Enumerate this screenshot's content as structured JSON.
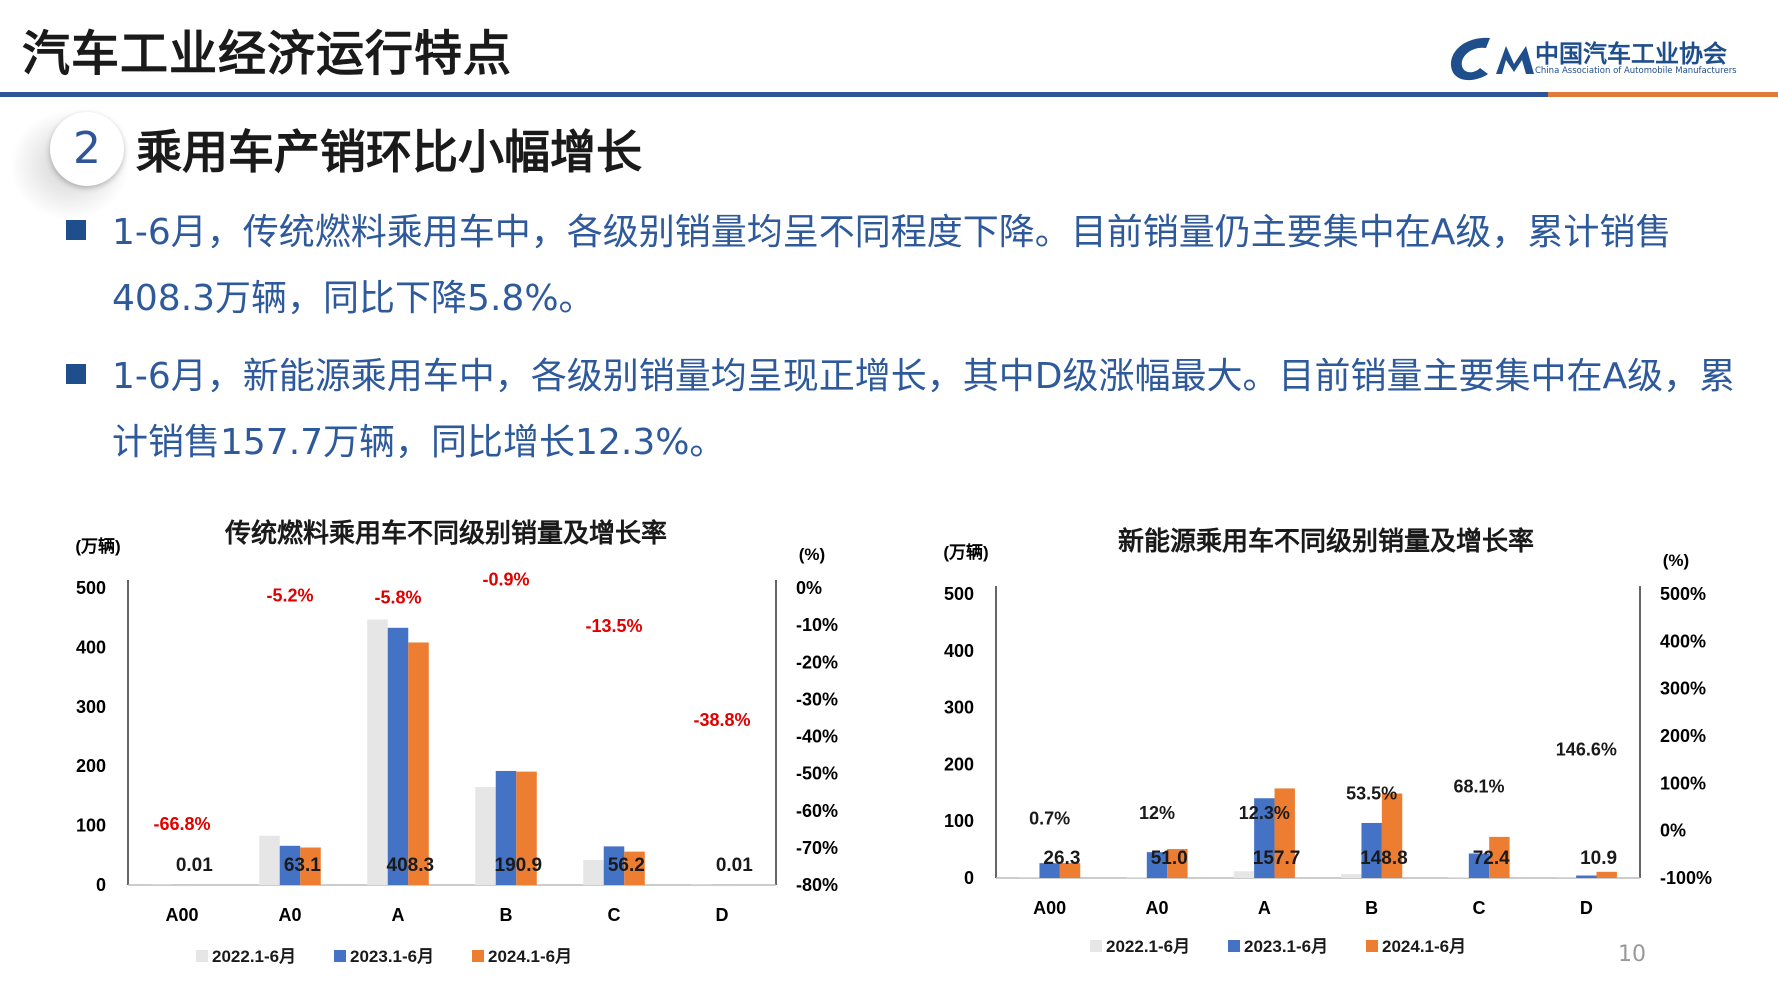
{
  "header": {
    "title": "汽车工业经济运行特点",
    "logo_cn": "中国汽车工业协会",
    "logo_en": "China Association of Automobile Manufacturers"
  },
  "section": {
    "number": "2",
    "heading": "乘用车产销环比小幅增长"
  },
  "bullets": [
    "1-6月，传统燃料乘用车中，各级别销量均呈不同程度下降。目前销量仍主要集中在A级，累计销售408.3万辆，同比下降5.8%。",
    "1-6月，新能源乘用车中，各级别销量均呈现正增长，其中D级涨幅最大。目前销量主要集中在A级，累计销售157.7万辆，同比增长12.3%。"
  ],
  "page_number": "10",
  "colors": {
    "s2022": "#e7e6e6",
    "s2023": "#4472c4",
    "s2024": "#ed7d31",
    "growth_neg": "#e00000",
    "growth_pos": "#1a1a1a",
    "accent": "#2f5597"
  },
  "chart_data": [
    {
      "type": "bar",
      "title": "传统燃料乘用车不同级别销量及增长率",
      "ylabel_left": "(万辆)",
      "ylabel_right": "(%)",
      "ylim_left": [
        0,
        500
      ],
      "ylim_right": [
        -80,
        0
      ],
      "yticks_left": [
        "0",
        "100",
        "200",
        "300",
        "400",
        "500"
      ],
      "yticks_right": [
        "-80%",
        "-70%",
        "-60%",
        "-50%",
        "-40%",
        "-30%",
        "-20%",
        "-10%",
        "0%"
      ],
      "categories": [
        "A00",
        "A0",
        "A",
        "B",
        "C",
        "D"
      ],
      "series": [
        {
          "name": "2022.1-6月",
          "values": [
            0.5,
            83,
            447,
            165,
            42,
            0.5
          ]
        },
        {
          "name": "2023.1-6月",
          "values": [
            0.03,
            66,
            433,
            192,
            65,
            0.02
          ]
        },
        {
          "name": "2024.1-6月",
          "values": [
            0.01,
            63.1,
            408.3,
            190.9,
            56.2,
            0.01
          ]
        }
      ],
      "value_labels": [
        "0.01",
        "63.1",
        "408.3",
        "190.9",
        "56.2",
        "0.01"
      ],
      "growth": [
        -66.8,
        -5.2,
        -5.8,
        -0.9,
        -13.5,
        -38.8
      ],
      "growth_labels": [
        "-66.8%",
        "-5.2%",
        "-5.8%",
        "-0.9%",
        "-13.5%",
        "-38.8%"
      ],
      "legend_position": "bottom",
      "grid": false
    },
    {
      "type": "bar",
      "title": "新能源乘用车不同级别销量及增长率",
      "ylabel_left": "(万辆)",
      "ylabel_right": "(%)",
      "ylim_left": [
        0,
        500
      ],
      "ylim_right": [
        -100,
        500
      ],
      "yticks_left": [
        "0",
        "100",
        "200",
        "300",
        "400",
        "500"
      ],
      "yticks_right": [
        "-100%",
        "0%",
        "100%",
        "200%",
        "300%",
        "400%",
        "500%"
      ],
      "categories": [
        "A00",
        "A0",
        "A",
        "B",
        "C",
        "D"
      ],
      "series": [
        {
          "name": "2022.1-6月",
          "values": [
            0.5,
            1,
            12,
            7,
            1,
            0.5
          ]
        },
        {
          "name": "2023.1-6月",
          "values": [
            26.1,
            45.5,
            140.4,
            96.9,
            43.1,
            4.4
          ]
        },
        {
          "name": "2024.1-6月",
          "values": [
            26.3,
            51.0,
            157.7,
            148.8,
            72.4,
            10.9
          ]
        }
      ],
      "value_labels": [
        "26.3",
        "51.0",
        "157.7",
        "148.8",
        "72.4",
        "10.9"
      ],
      "growth": [
        0.7,
        12,
        12.3,
        53.5,
        68.1,
        146.6
      ],
      "growth_labels": [
        "0.7%",
        "12%",
        "12.3%",
        "53.5%",
        "68.1%",
        "146.6%"
      ],
      "legend_position": "bottom",
      "grid": false
    }
  ]
}
